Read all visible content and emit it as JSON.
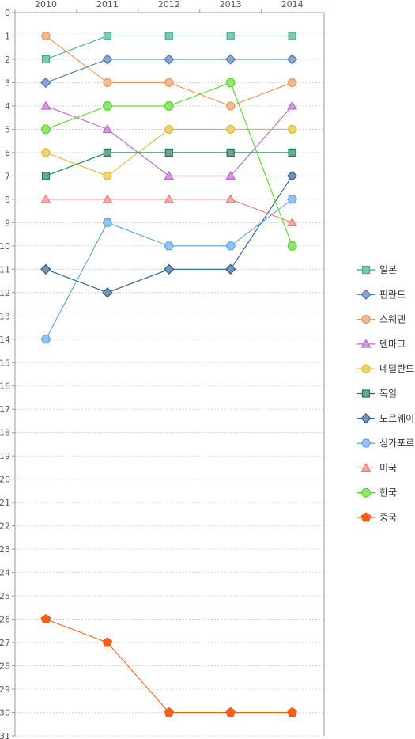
{
  "chart_data": {
    "type": "line",
    "title": "",
    "xlabel": "",
    "ylabel": "",
    "x": [
      "2010",
      "2011",
      "2012",
      "2013",
      "2014"
    ],
    "y_ticks": [
      "0",
      "1",
      "2",
      "3",
      "4",
      "5",
      "6",
      "7",
      "8",
      "9",
      "10",
      "11",
      "12",
      "13",
      "14",
      "15",
      "16",
      "17",
      "18",
      "19",
      "20",
      "21",
      "22",
      "23",
      "24",
      "25",
      "26",
      "27",
      "28",
      "29",
      "30",
      "31"
    ],
    "ylim": [
      0,
      31
    ],
    "y_inverted": true,
    "grid": "horizontal dashed",
    "legend_position": "right",
    "series": [
      {
        "name": "일본",
        "values": [
          2,
          1,
          1,
          1,
          1
        ],
        "color": "#3aaa8e",
        "marker": "square"
      },
      {
        "name": "핀란드",
        "values": [
          3,
          2,
          2,
          2,
          2
        ],
        "color": "#4a78b5",
        "marker": "diamond"
      },
      {
        "name": "스웨덴",
        "values": [
          1,
          3,
          3,
          4,
          3
        ],
        "color": "#e8955a",
        "marker": "circle"
      },
      {
        "name": "덴마크",
        "values": [
          4,
          5,
          7,
          7,
          4
        ],
        "color": "#b868c8",
        "marker": "triangle"
      },
      {
        "name": "네덜란드",
        "values": [
          6,
          7,
          5,
          5,
          5
        ],
        "color": "#e0bc2c",
        "marker": "circle"
      },
      {
        "name": "독일",
        "values": [
          7,
          6,
          6,
          6,
          6
        ],
        "color": "#1a7a55",
        "marker": "square"
      },
      {
        "name": "노르웨이",
        "values": [
          11,
          12,
          11,
          11,
          7
        ],
        "color": "#2b5a92",
        "marker": "diamond"
      },
      {
        "name": "싱가포르",
        "values": [
          14,
          9,
          10,
          10,
          8
        ],
        "color": "#5aa2e0",
        "marker": "hexagon"
      },
      {
        "name": "미국",
        "values": [
          8,
          8,
          8,
          8,
          9
        ],
        "color": "#f07a7a",
        "marker": "triangle"
      },
      {
        "name": "한국",
        "values": [
          5,
          4,
          4,
          3,
          10
        ],
        "color": "#5ad42a",
        "marker": "octagon"
      },
      {
        "name": "중국",
        "values": [
          26,
          27,
          30,
          30,
          30
        ],
        "color": "#f06018",
        "marker": "pentagon"
      }
    ]
  }
}
